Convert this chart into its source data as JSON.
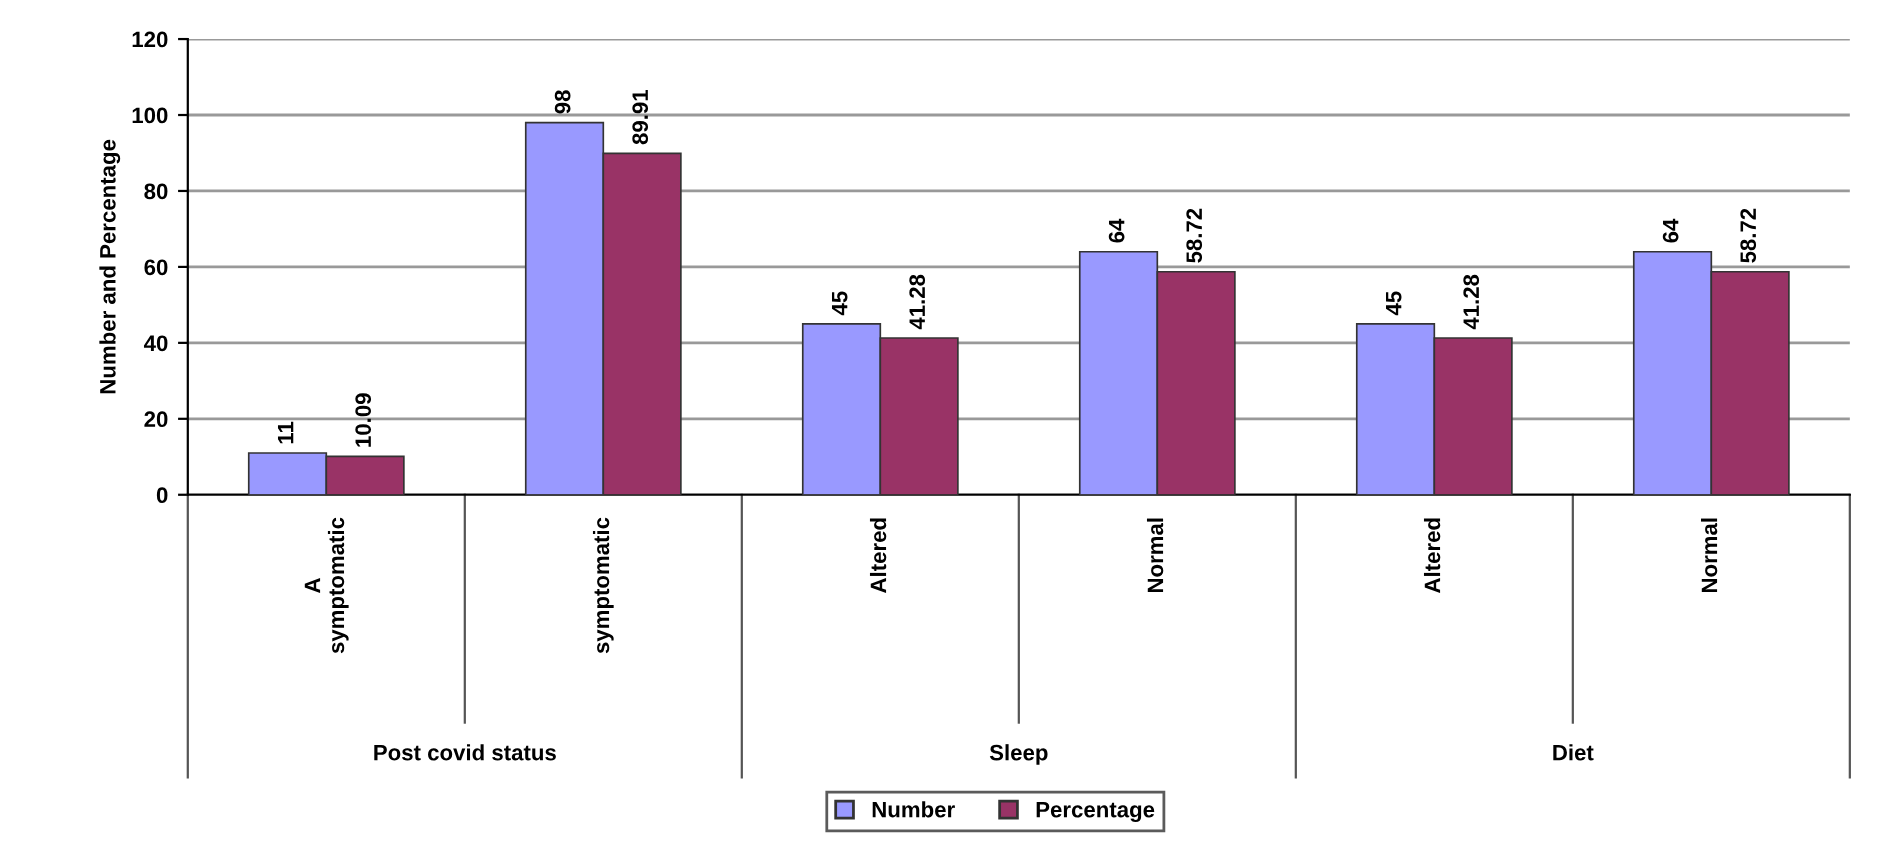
{
  "chart_data": {
    "type": "bar",
    "ylabel": "Number and Percentage",
    "categories": [
      "A\nsymptomatic",
      "symptomatic",
      "Altered",
      "Normal",
      "Altered",
      "Normal"
    ],
    "series": [
      {
        "name": "Number",
        "color": "#9999ff",
        "values": [
          11,
          98,
          45,
          64,
          45,
          64
        ]
      },
      {
        "name": "Percentage",
        "color": "#993366",
        "values": [
          10.09,
          89.91,
          41.28,
          58.72,
          41.28,
          58.72
        ]
      }
    ],
    "annotations": [
      "Post covid status",
      "Sleep",
      "Diet"
    ],
    "ylim": [
      0,
      120
    ],
    "yticks": [
      0,
      20,
      40,
      60,
      80,
      100,
      120
    ],
    "data_labels": true,
    "grid": "y",
    "legend": "bottom"
  }
}
